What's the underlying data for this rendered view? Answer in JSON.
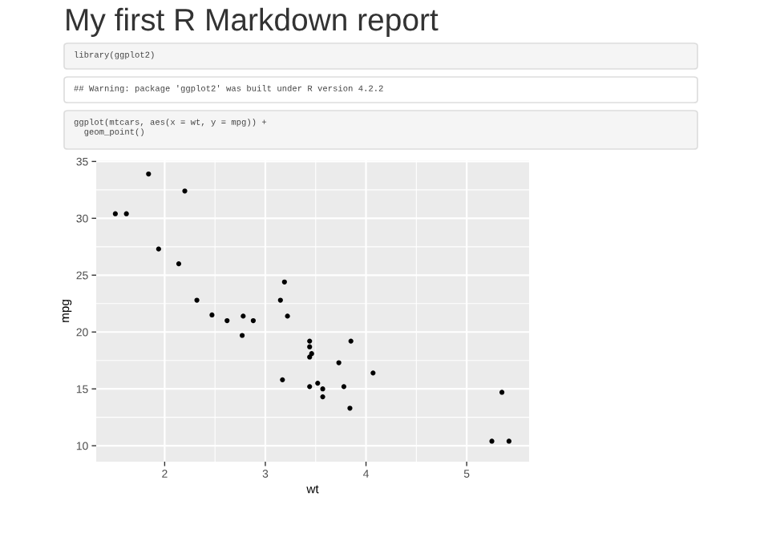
{
  "chart_data": {
    "type": "scatter",
    "title": "My first R Markdown report",
    "annotations": [
      "library(ggplot2)",
      "## Warning: package 'ggplot2' was built under R version 4.2.2",
      "ggplot(mtcars, aes(x = wt, y = mpg)) +\n  geom_point()"
    ],
    "xlabel": "wt",
    "ylabel": "mpg",
    "x": [
      2.62,
      2.88,
      2.32,
      3.22,
      3.44,
      3.46,
      3.57,
      3.19,
      3.15,
      3.44,
      3.44,
      4.07,
      3.73,
      3.78,
      5.25,
      5.42,
      5.35,
      2.2,
      1.62,
      1.84,
      2.47,
      3.52,
      3.44,
      3.84,
      3.85,
      1.94,
      2.14,
      1.51,
      3.17,
      2.77,
      3.57,
      2.78
    ],
    "values": [
      21.0,
      21.0,
      22.8,
      21.4,
      18.7,
      18.1,
      14.3,
      24.4,
      22.8,
      19.2,
      17.8,
      16.4,
      17.3,
      15.2,
      10.4,
      10.4,
      14.7,
      32.4,
      30.4,
      33.9,
      21.5,
      15.5,
      15.2,
      13.3,
      19.2,
      27.3,
      26.0,
      30.4,
      15.8,
      19.7,
      15.0,
      21.4
    ],
    "color": "#000000",
    "marker": "circle",
    "xlim": [
      1.32,
      5.62
    ],
    "ylim": [
      8.6,
      35.1
    ],
    "xticks": [
      2,
      3,
      4,
      5
    ],
    "yticks": [
      10,
      15,
      20,
      25,
      30,
      35
    ],
    "grid": true
  }
}
